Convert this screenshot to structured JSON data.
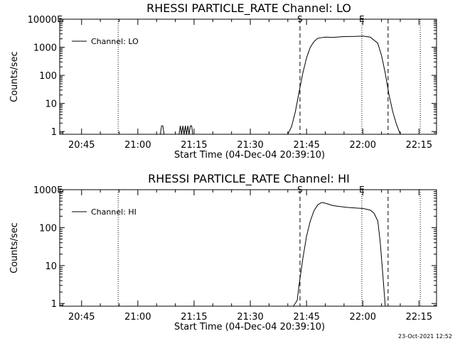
{
  "figure": {
    "timestamp": "23-Oct-2021 12:52"
  },
  "chart_data": [
    {
      "type": "line",
      "title": "RHESSI PARTICLE_RATE Channel: LO",
      "xlabel": "Start Time (04-Dec-04 20:39:10)",
      "ylabel": "Counts/sec",
      "y_scale": "log",
      "xlim": [
        "20:39:10",
        "22:19:40"
      ],
      "ylim": [
        0.8,
        10000
      ],
      "xticks": [
        "20:45",
        "21:00",
        "21:15",
        "21:30",
        "21:45",
        "22:00",
        "22:15"
      ],
      "yticks": [
        "1",
        "10",
        "100",
        "1000",
        "10000"
      ],
      "legend": "top-left",
      "series": [
        {
          "name": "Channel: LO",
          "x": [
            "21:06",
            "21:06:20",
            "21:06:40",
            "21:07",
            "21:11",
            "21:11:20",
            "21:11:40",
            "21:12",
            "21:12:20",
            "21:12:40",
            "21:13",
            "21:13:20",
            "21:13:40",
            "21:14",
            "21:14:20",
            "21:14:40",
            "21:40:00",
            "21:41:00",
            "21:42:00",
            "21:43:00",
            "21:44:00",
            "21:45:00",
            "21:46:00",
            "21:47:00",
            "21:48:00",
            "21:50:00",
            "21:52:00",
            "21:55:00",
            "21:58:00",
            "22:00:00",
            "22:02:00",
            "22:04:00",
            "22:05:00",
            "22:06:00",
            "22:07:00",
            "22:08:00",
            "22:09:00",
            "22:10:00"
          ],
          "y": [
            0.8,
            1.6,
            1.6,
            0.8,
            0.8,
            1.6,
            0.8,
            1.6,
            0.8,
            1.6,
            0.8,
            1.6,
            0.8,
            1.6,
            1.6,
            0.8,
            0.8,
            1.5,
            5,
            25,
            120,
            420,
            1000,
            1600,
            2100,
            2300,
            2250,
            2400,
            2450,
            2500,
            2300,
            1400,
            500,
            120,
            20,
            5,
            1.8,
            0.8
          ]
        }
      ],
      "vlines_dashed": [
        "21:43:15",
        "22:06:45"
      ],
      "vlines_dotted": [
        "20:54:45",
        "21:59:45",
        "22:15:20"
      ],
      "markers": [
        {
          "label": "E",
          "at": "20:39:10"
        },
        {
          "label": "S",
          "at": "21:43:15"
        },
        {
          "label": "E",
          "at": "21:59:45"
        }
      ]
    },
    {
      "type": "line",
      "title": "RHESSI PARTICLE_RATE Channel: HI",
      "xlabel": "Start Time (04-Dec-04 20:39:10)",
      "ylabel": "Counts/sec",
      "y_scale": "log",
      "xlim": [
        "20:39:10",
        "22:19:40"
      ],
      "ylim": [
        0.85,
        1000
      ],
      "xticks": [
        "20:45",
        "21:00",
        "21:15",
        "21:30",
        "21:45",
        "22:00",
        "22:15"
      ],
      "yticks": [
        "1",
        "10",
        "100",
        "1000"
      ],
      "legend": "top-left",
      "series": [
        {
          "name": "Channel: HI",
          "x": [
            "21:41:30",
            "21:42:30",
            "21:43:00",
            "21:44:00",
            "21:45:00",
            "21:46:00",
            "21:47:00",
            "21:48:00",
            "21:49:00",
            "21:50:00",
            "21:52:00",
            "21:54:00",
            "21:56:00",
            "21:58:00",
            "22:00:00",
            "22:02:00",
            "22:03:00",
            "22:04:00",
            "22:04:40",
            "22:05:20",
            "22:06:00"
          ],
          "y": [
            0.85,
            1.2,
            3,
            15,
            60,
            150,
            280,
            400,
            460,
            440,
            380,
            360,
            340,
            330,
            320,
            290,
            240,
            150,
            40,
            6,
            0.85
          ]
        }
      ],
      "vlines_dashed": [
        "21:43:15",
        "22:06:45"
      ],
      "vlines_dotted": [
        "20:54:45",
        "21:59:45",
        "22:15:20"
      ],
      "markers": [
        {
          "label": "E",
          "at": "20:39:10"
        },
        {
          "label": "S",
          "at": "21:43:15"
        },
        {
          "label": "E",
          "at": "21:59:45"
        }
      ]
    }
  ]
}
